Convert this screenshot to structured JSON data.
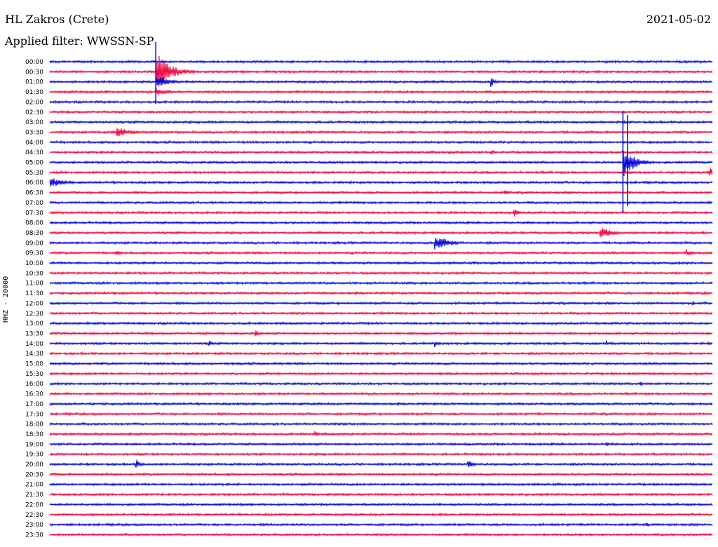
{
  "header": {
    "station": "HL Zakros (Crete)",
    "date": "2021-05-02",
    "filter": "Applied filter: WWSSN-SP"
  },
  "channel_label": "HHZ - 20000",
  "colors": {
    "trace_even": "#0000d8",
    "trace_odd": "#f0003c"
  },
  "time_labels": [
    "00:00",
    "00:30",
    "01:00",
    "01:30",
    "02:00",
    "02:30",
    "03:00",
    "03:30",
    "04:00",
    "04:30",
    "05:00",
    "05:30",
    "06:00",
    "06:30",
    "07:00",
    "07:30",
    "08:00",
    "08:30",
    "09:00",
    "09:30",
    "10:00",
    "10:30",
    "11:00",
    "11:30",
    "12:00",
    "12:30",
    "13:00",
    "13:30",
    "14:00",
    "14:30",
    "15:00",
    "15:30",
    "16:00",
    "16:30",
    "17:00",
    "17:30",
    "18:00",
    "18:30",
    "19:00",
    "19:30",
    "20:00",
    "20:30",
    "21:00",
    "21:30",
    "22:00",
    "22:30",
    "23:00",
    "23:30"
  ],
  "events": [
    {
      "row": 1,
      "pos": 0.16,
      "amp": 30,
      "dur": 0.06
    },
    {
      "row": 1,
      "pos": 0.19,
      "amp": 8,
      "dur": 0.03
    },
    {
      "row": 2,
      "pos": 0.16,
      "amp": 12,
      "dur": 0.05
    },
    {
      "row": 2,
      "pos": 0.665,
      "amp": 8,
      "dur": 0.02
    },
    {
      "row": 3,
      "pos": 0.16,
      "amp": 6,
      "dur": 0.05
    },
    {
      "row": 7,
      "pos": 0.1,
      "amp": 9,
      "dur": 0.05
    },
    {
      "row": 9,
      "pos": 0.665,
      "amp": 5,
      "dur": 0.02
    },
    {
      "row": 10,
      "pos": 0.865,
      "amp": 22,
      "dur": 0.05
    },
    {
      "row": 11,
      "pos": 0.995,
      "amp": 9,
      "dur": 0.02
    },
    {
      "row": 12,
      "pos": 0.0,
      "amp": 8,
      "dur": 0.06
    },
    {
      "row": 13,
      "pos": 0.685,
      "amp": 5,
      "dur": 0.02
    },
    {
      "row": 15,
      "pos": 0.7,
      "amp": 7,
      "dur": 0.02
    },
    {
      "row": 17,
      "pos": 0.83,
      "amp": 10,
      "dur": 0.05
    },
    {
      "row": 18,
      "pos": 0.58,
      "amp": 12,
      "dur": 0.06
    },
    {
      "row": 19,
      "pos": 0.1,
      "amp": 5,
      "dur": 0.02
    },
    {
      "row": 19,
      "pos": 0.96,
      "amp": 6,
      "dur": 0.02
    },
    {
      "row": 24,
      "pos": 0.97,
      "amp": 5,
      "dur": 0.01
    },
    {
      "row": 27,
      "pos": 0.31,
      "amp": 5,
      "dur": 0.02
    },
    {
      "row": 28,
      "pos": 0.24,
      "amp": 8,
      "dur": 0.01
    },
    {
      "row": 28,
      "pos": 0.58,
      "amp": 7,
      "dur": 0.01
    },
    {
      "row": 28,
      "pos": 0.84,
      "amp": 5,
      "dur": 0.01
    },
    {
      "row": 32,
      "pos": 0.89,
      "amp": 7,
      "dur": 0.01
    },
    {
      "row": 37,
      "pos": 0.4,
      "amp": 7,
      "dur": 0.01
    },
    {
      "row": 38,
      "pos": 0.84,
      "amp": 5,
      "dur": 0.01
    },
    {
      "row": 40,
      "pos": 0.13,
      "amp": 8,
      "dur": 0.02
    },
    {
      "row": 40,
      "pos": 0.63,
      "amp": 6,
      "dur": 0.03
    },
    {
      "row": 46,
      "pos": 0.9,
      "amp": 5,
      "dur": 0.01
    }
  ],
  "spikes": [
    {
      "row": 0,
      "pos": 0.16,
      "up": 28,
      "down": 60
    },
    {
      "row": 6,
      "pos": 0.865,
      "up": 16,
      "down": 128
    },
    {
      "row": 6,
      "pos": 0.872,
      "up": 10,
      "down": 120
    }
  ]
}
